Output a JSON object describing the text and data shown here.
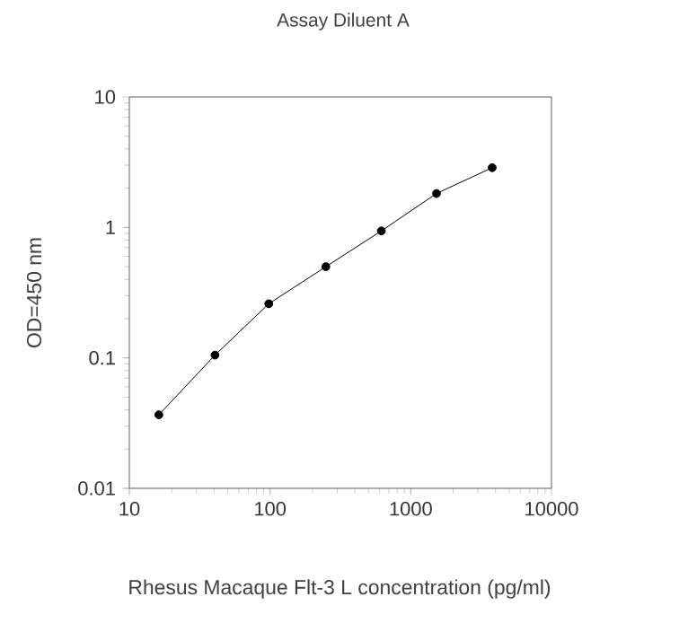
{
  "chart_data": {
    "type": "line",
    "title": "Assay Diluent A",
    "xlabel": "Rhesus  Macaque Flt-3 L concentration (pg/ml)",
    "ylabel": "OD=450 nm",
    "x": [
      16.2,
      40.6,
      98,
      249,
      618,
      1524,
      3790
    ],
    "series": [
      {
        "color": "#000000",
        "values": [
          0.0366,
          0.105,
          0.26,
          0.5,
          0.94,
          1.82,
          2.87
        ]
      }
    ],
    "log": "xy",
    "xlim": [
      10,
      10000
    ],
    "ylim": [
      0.01,
      10
    ],
    "xticks": [
      10,
      100,
      1000,
      10000
    ],
    "yticks": [
      0.01,
      0.1,
      1,
      10
    ],
    "marker": "circle",
    "line_style": "solid"
  }
}
